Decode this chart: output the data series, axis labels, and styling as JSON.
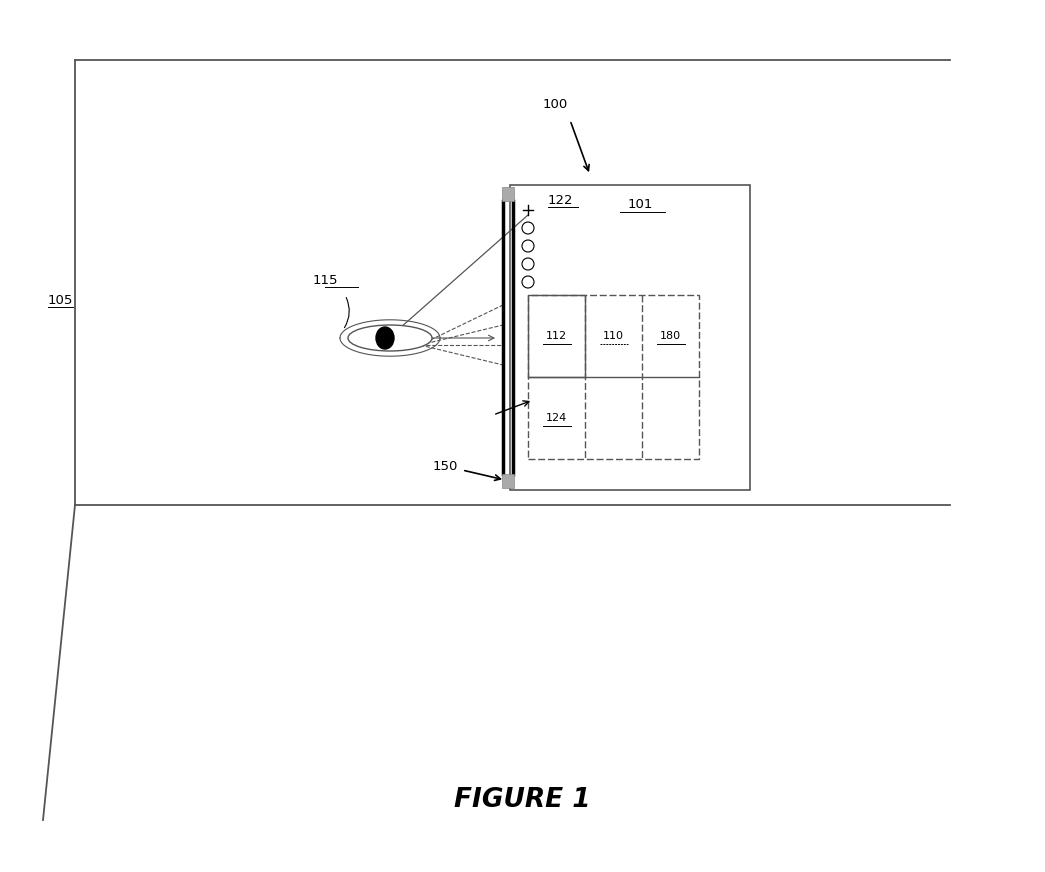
{
  "fig_width": 10.45,
  "fig_height": 8.72,
  "bg_color": "#ffffff",
  "line_color": "#666666",
  "title": "FIGURE 1"
}
